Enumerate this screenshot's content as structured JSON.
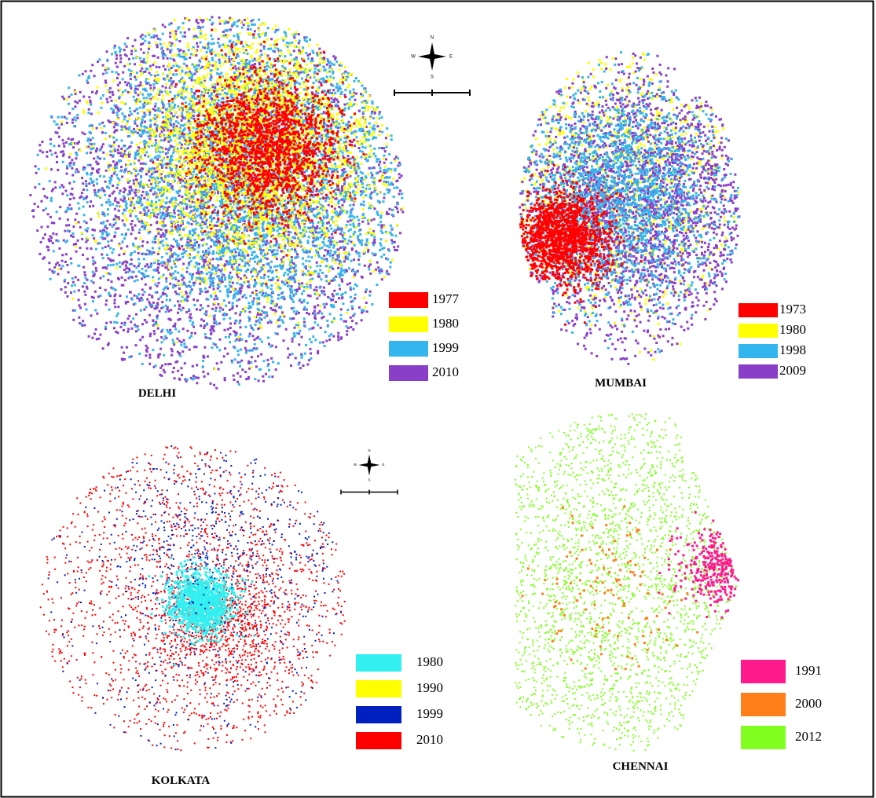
{
  "compass": [
    "N",
    "E",
    "S",
    "W"
  ],
  "panels": [
    {
      "city": "DELHI",
      "legend": [
        {
          "label": "1977",
          "color": "#ff0000"
        },
        {
          "label": "1980",
          "color": "#ffff00"
        },
        {
          "label": "1999",
          "color": "#33b5ee"
        },
        {
          "label": "2010",
          "color": "#8a3fc8"
        }
      ]
    },
    {
      "city": "MUMBAI",
      "legend": [
        {
          "label": "1973",
          "color": "#ff0000"
        },
        {
          "label": "1980",
          "color": "#ffff00"
        },
        {
          "label": "1998",
          "color": "#33b5ee"
        },
        {
          "label": "2009",
          "color": "#8a3fc8"
        }
      ]
    },
    {
      "city": "KOLKATA",
      "legend": [
        {
          "label": "1980",
          "color": "#33f0f0"
        },
        {
          "label": "1990",
          "color": "#ffff00"
        },
        {
          "label": "1999",
          "color": "#0020c0"
        },
        {
          "label": "2010",
          "color": "#ff0000"
        }
      ]
    },
    {
      "city": "CHENNAI",
      "legend": [
        {
          "label": "1991",
          "color": "#ff1a8c"
        },
        {
          "label": "2000",
          "color": "#ff7f1a"
        },
        {
          "label": "2012",
          "color": "#80ff20"
        }
      ]
    }
  ]
}
